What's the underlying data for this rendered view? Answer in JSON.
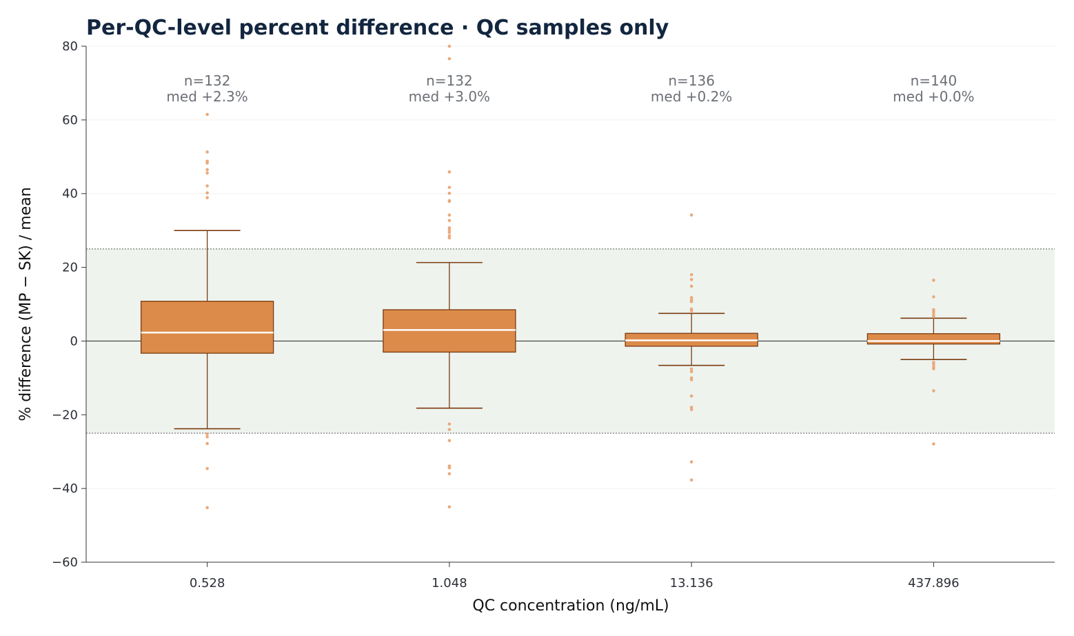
{
  "chart_data": {
    "type": "box",
    "title": "Per-QC-level percent difference  ·  QC samples only",
    "xlabel": "QC concentration  (ng/mL)",
    "ylabel": "% difference (MP − SK) / mean",
    "ylim": [
      -60,
      80
    ],
    "yticks": [
      -60,
      -40,
      -20,
      0,
      20,
      40,
      60,
      80
    ],
    "ytick_labels": [
      "−60",
      "−40",
      "−20",
      "0",
      "20",
      "40",
      "60",
      "80"
    ],
    "grid": "horizontal, faint",
    "reference_band": {
      "low": -25,
      "high": 25
    },
    "reference_line": 0,
    "categories": [
      "0.528",
      "1.048",
      "13.136",
      "437.896"
    ],
    "boxes": [
      {
        "category": "0.528",
        "n_label": "n=132",
        "median_label": "med +2.3%",
        "whisker_low": -23.8,
        "q1": -3.3,
        "median": 2.3,
        "q3": 10.8,
        "whisker_high": 30.0,
        "outliers": [
          61.5,
          51.3,
          48.8,
          48.3,
          46.5,
          45.6,
          42.1,
          40.2,
          38.9,
          -25.2,
          -26.0,
          -27.8,
          -34.6,
          -45.2
        ]
      },
      {
        "category": "1.048",
        "n_label": "n=132",
        "median_label": "med +3.0%",
        "whisker_low": -18.2,
        "q1": -3.0,
        "median": 3.0,
        "q3": 8.5,
        "whisker_high": 21.3,
        "outliers": [
          80.0,
          76.6,
          45.9,
          41.7,
          40.1,
          38.1,
          37.9,
          34.2,
          32.7,
          30.7,
          30.1,
          29.5,
          28.6,
          28.0,
          -22.5,
          -24.0,
          -27.0,
          -33.9,
          -34.4,
          -36.0,
          -45.0
        ]
      },
      {
        "category": "13.136",
        "n_label": "n=136",
        "median_label": "med +0.2%",
        "whisker_low": -6.6,
        "q1": -1.4,
        "median": 0.2,
        "q3": 2.1,
        "whisker_high": 7.5,
        "outliers": [
          34.2,
          18.0,
          16.7,
          14.9,
          11.8,
          11.2,
          10.7,
          8.7,
          8.2,
          -7.6,
          -8.3,
          -10.0,
          -10.5,
          -14.9,
          -18.0,
          -18.6,
          -32.8,
          -37.7
        ]
      },
      {
        "category": "437.896",
        "n_label": "n=140",
        "median_label": "med +0.0%",
        "whisker_low": -5.0,
        "q1": -0.8,
        "median": 0.0,
        "q3": 2.0,
        "whisker_high": 6.2,
        "outliers": [
          16.5,
          12.0,
          8.5,
          7.9,
          7.2,
          6.6,
          -5.8,
          -6.3,
          -7.0,
          -7.5,
          -13.5,
          -27.9
        ]
      }
    ],
    "colors": {
      "box_fill": "#dc8b4a",
      "box_edge": "#7a3b10",
      "median": "#ffffff",
      "outlier": "#eaaa7c",
      "band": "#eef3ee",
      "band_edge": "#777777",
      "title": "#13263f"
    }
  }
}
